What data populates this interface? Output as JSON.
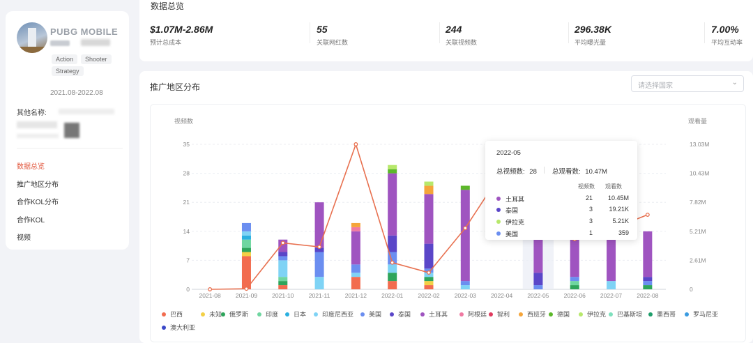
{
  "app": {
    "name": "PUBG MOBILE",
    "tags": [
      "Action",
      "Shooter",
      "Strategy"
    ],
    "period": "2021.08-2022.08",
    "other_names_label": "其他名称:"
  },
  "nav": {
    "items": [
      "数据总览",
      "推广地区分布",
      "合作KOL分布",
      "合作KOL",
      "视频"
    ],
    "active": "数据总览"
  },
  "overview": {
    "title": "数据总览",
    "metrics": [
      {
        "value": "$1.07M-2.86M",
        "label": "预计总成本"
      },
      {
        "value": "55",
        "label": "关联网红数"
      },
      {
        "value": "244",
        "label": "关联视频数"
      },
      {
        "value": "296.38K",
        "label": "平均曝光量"
      },
      {
        "value": "7.00%",
        "label": "平均互动率"
      }
    ]
  },
  "region": {
    "title": "推广地区分布",
    "select_placeholder": "请选择国家"
  },
  "chart_data": {
    "type": "bar",
    "stacked": true,
    "ylabel": "视频数",
    "y2label": "观看量",
    "ylim": [
      0,
      35
    ],
    "yticks": [
      "0",
      "7",
      "14",
      "21",
      "28",
      "35"
    ],
    "y2ticks": [
      "0",
      "2.61M",
      "5.21M",
      "7.82M",
      "10.43M",
      "13.03M"
    ],
    "y2lim": [
      0,
      13.03
    ],
    "categories": [
      "2021-08",
      "2021-09",
      "2021-10",
      "2021-11",
      "2021-12",
      "2022-01",
      "2022-02",
      "2022-03",
      "2022-04",
      "2022-05",
      "2022-06",
      "2022-07",
      "2022-08"
    ],
    "series": [
      {
        "name": "巴西",
        "color": "#f26c4f",
        "values": [
          0,
          8,
          1,
          0,
          3,
          2,
          1,
          0,
          0,
          0,
          0,
          0,
          0
        ]
      },
      {
        "name": "未知",
        "color": "#f3d046",
        "values": [
          0,
          1,
          0,
          0,
          0,
          0,
          1,
          0,
          0,
          0,
          0,
          0,
          0
        ]
      },
      {
        "name": "俄罗斯",
        "color": "#2ea55b",
        "values": [
          0,
          1,
          1,
          0,
          0,
          2,
          1,
          0,
          0,
          0,
          1,
          0,
          1
        ]
      },
      {
        "name": "印度",
        "color": "#6fd6a0",
        "values": [
          0,
          2,
          1,
          0,
          0,
          0,
          0,
          0,
          0,
          0,
          1,
          0,
          0
        ]
      },
      {
        "name": "日本",
        "color": "#2ab0e0",
        "values": [
          0,
          1,
          0,
          0,
          0,
          0,
          0,
          0,
          0,
          0,
          0,
          0,
          0
        ]
      },
      {
        "name": "印度尼西亚",
        "color": "#7fd3f5",
        "values": [
          0,
          1,
          4,
          3,
          1,
          2,
          1,
          1,
          0,
          0,
          0,
          2,
          0
        ]
      },
      {
        "name": "美国",
        "color": "#6b8ef0",
        "values": [
          0,
          2,
          1,
          6,
          2,
          3,
          1,
          1,
          0,
          1,
          1,
          0,
          1
        ]
      },
      {
        "name": "泰国",
        "color": "#5a46c8",
        "values": [
          0,
          0,
          1,
          1,
          0,
          4,
          6,
          0,
          0,
          3,
          0,
          0,
          1
        ]
      },
      {
        "name": "土耳其",
        "color": "#9f54c0",
        "values": [
          0,
          0,
          3,
          11,
          8,
          15,
          12,
          22,
          0,
          21,
          13,
          13,
          11
        ]
      },
      {
        "name": "阿根廷",
        "color": "#f07aa2",
        "values": [
          0,
          0,
          0,
          0,
          1,
          0,
          0,
          0,
          0,
          0,
          0,
          0,
          0
        ]
      },
      {
        "name": "智利",
        "color": "#e03a5e",
        "values": [
          0,
          0,
          0,
          0,
          0,
          0,
          0,
          0,
          0,
          0,
          0,
          0,
          0
        ]
      },
      {
        "name": "西班牙",
        "color": "#f5a53a",
        "values": [
          0,
          0,
          0,
          0,
          1,
          0,
          2,
          0,
          0,
          0,
          0,
          0,
          0
        ]
      },
      {
        "name": "德国",
        "color": "#5cb82a",
        "values": [
          0,
          0,
          0,
          0,
          0,
          1,
          0,
          1,
          0,
          0,
          0,
          0,
          0
        ]
      },
      {
        "name": "伊拉克",
        "color": "#b7e86b",
        "values": [
          0,
          0,
          0,
          0,
          0,
          1,
          1,
          0,
          0,
          3,
          0,
          0,
          0
        ]
      },
      {
        "name": "巴基斯坦",
        "color": "#7fe0bd",
        "values": [
          0,
          0,
          0,
          0,
          0,
          0,
          0,
          0,
          0,
          0,
          0,
          0,
          0
        ]
      },
      {
        "name": "墨西哥",
        "color": "#1f9e6b",
        "values": [
          0,
          0,
          0,
          0,
          0,
          0,
          0,
          0,
          0,
          0,
          0,
          0,
          0
        ]
      },
      {
        "name": "罗马尼亚",
        "color": "#3a9be0",
        "values": [
          0,
          0,
          0,
          0,
          0,
          0,
          0,
          0,
          0,
          0,
          0,
          0,
          0
        ]
      },
      {
        "name": "澳大利亚",
        "color": "#3a48c8",
        "values": [
          0,
          0,
          0,
          0,
          0,
          0,
          0,
          0,
          0,
          0,
          0,
          0,
          0
        ]
      }
    ],
    "line": {
      "name": "观看量",
      "color": "#e8704f",
      "values_m": [
        0.0,
        0.05,
        4.17,
        3.81,
        13.03,
        2.4,
        1.5,
        5.5,
        10.5,
        10.47,
        4.5,
        5.4,
        6.7
      ]
    },
    "hover_index": 9,
    "tooltip": {
      "date": "2022-05",
      "total_label": "总视频数:",
      "total_value": "28",
      "views_label": "总观看数:",
      "views_value": "10.47M",
      "col_count": "视频数",
      "col_views": "观看数",
      "rows": [
        {
          "name": "土耳其",
          "count": "21",
          "views": "10.45M",
          "color": "#9f54c0"
        },
        {
          "name": "泰国",
          "count": "3",
          "views": "19.21K",
          "color": "#5a46c8"
        },
        {
          "name": "伊拉克",
          "count": "3",
          "views": "5.21K",
          "color": "#b7e86b"
        },
        {
          "name": "美国",
          "count": "1",
          "views": "359",
          "color": "#6b8ef0"
        }
      ]
    }
  }
}
